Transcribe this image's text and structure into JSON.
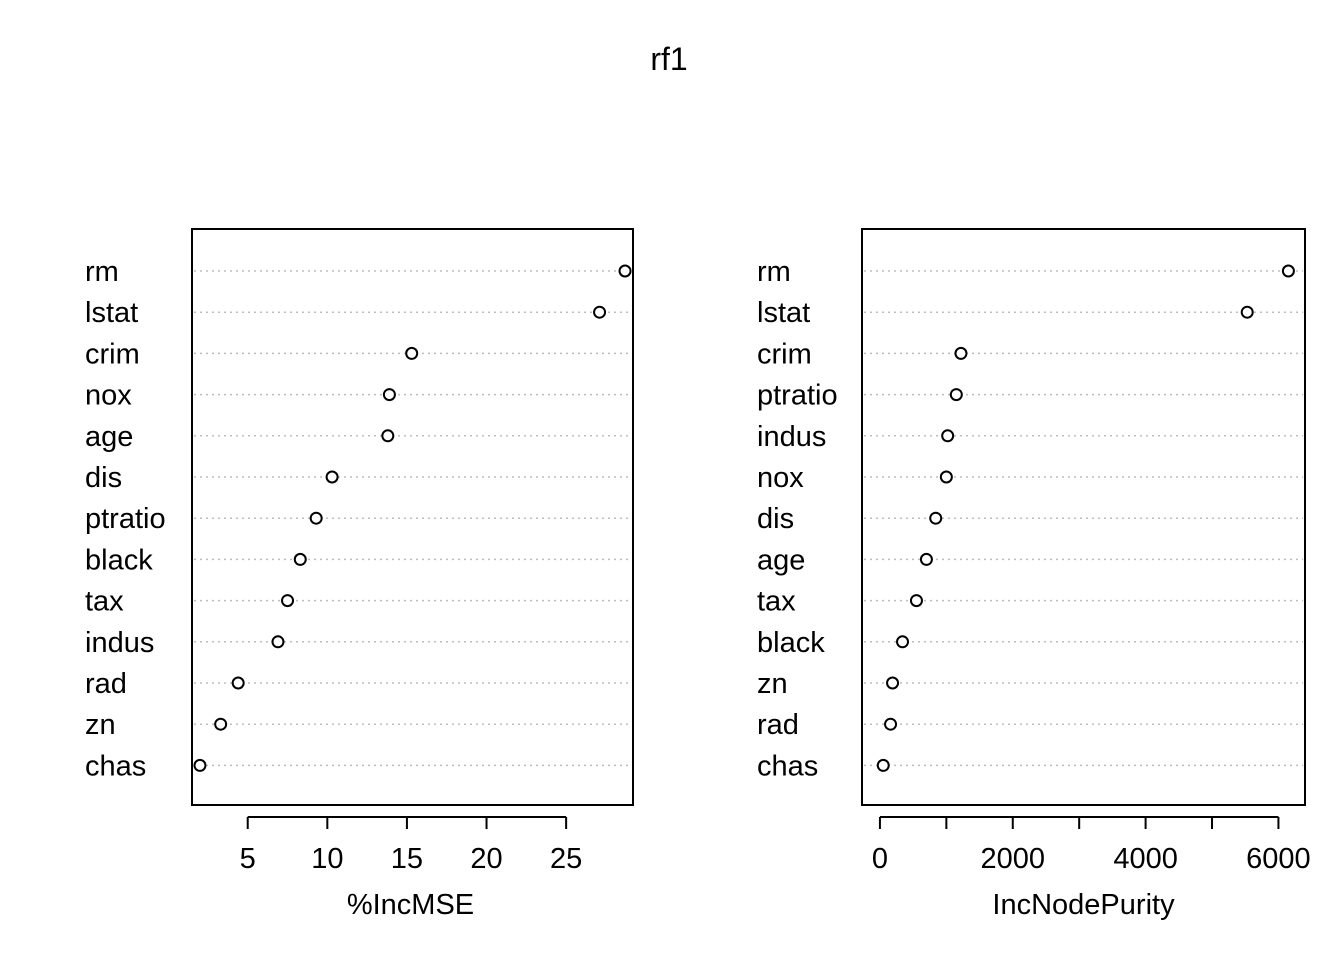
{
  "chart_data": {
    "type": "scatter",
    "title": "rf1",
    "panels": [
      {
        "xlabel": "%IncMSE",
        "xticks": [
          5,
          10,
          15,
          20,
          25
        ],
        "xlim": [
          1.5,
          29.2
        ],
        "variables": [
          "rm",
          "lstat",
          "crim",
          "nox",
          "age",
          "dis",
          "ptratio",
          "black",
          "tax",
          "indus",
          "rad",
          "zn",
          "chas"
        ],
        "values": [
          28.7,
          27.1,
          15.3,
          13.9,
          13.8,
          10.3,
          9.3,
          8.3,
          7.5,
          6.9,
          4.4,
          3.3,
          2.0
        ],
        "grid": "dotted horizontal"
      },
      {
        "xlabel": "IncNodePurity",
        "xticks": [
          0,
          2000,
          4000,
          6000
        ],
        "minor_xticks": [
          1000,
          3000,
          5000
        ],
        "xlim": [
          -270,
          6400
        ],
        "variables": [
          "rm",
          "lstat",
          "crim",
          "ptratio",
          "indus",
          "nox",
          "dis",
          "age",
          "tax",
          "black",
          "zn",
          "rad",
          "chas"
        ],
        "values": [
          6150,
          5530,
          1220,
          1150,
          1020,
          1000,
          840,
          700,
          550,
          340,
          190,
          160,
          50
        ],
        "grid": "dotted horizontal"
      }
    ]
  }
}
